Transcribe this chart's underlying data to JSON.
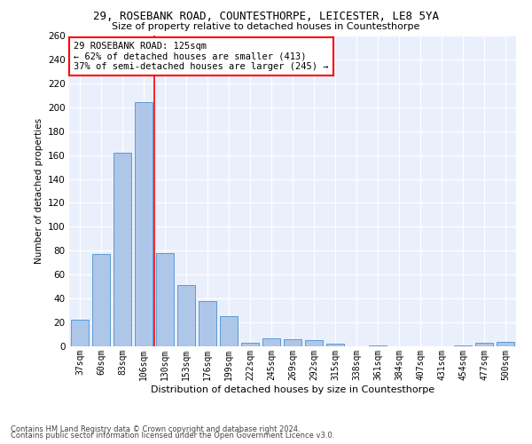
{
  "title": "29, ROSEBANK ROAD, COUNTESTHORPE, LEICESTER, LE8 5YA",
  "subtitle": "Size of property relative to detached houses in Countesthorpe",
  "xlabel": "Distribution of detached houses by size in Countesthorpe",
  "ylabel": "Number of detached properties",
  "bar_color": "#aec6e8",
  "bar_edge_color": "#5b9bd5",
  "background_color": "#eaf0fb",
  "grid_color": "#ffffff",
  "categories": [
    "37sqm",
    "60sqm",
    "83sqm",
    "106sqm",
    "130sqm",
    "153sqm",
    "176sqm",
    "199sqm",
    "222sqm",
    "245sqm",
    "269sqm",
    "292sqm",
    "315sqm",
    "338sqm",
    "361sqm",
    "384sqm",
    "407sqm",
    "431sqm",
    "454sqm",
    "477sqm",
    "500sqm"
  ],
  "values": [
    22,
    77,
    162,
    204,
    78,
    51,
    38,
    25,
    3,
    7,
    6,
    5,
    2,
    0,
    1,
    0,
    0,
    0,
    1,
    3,
    4
  ],
  "ylim": [
    0,
    260
  ],
  "yticks": [
    0,
    20,
    40,
    60,
    80,
    100,
    120,
    140,
    160,
    180,
    200,
    220,
    240,
    260
  ],
  "redline_x": 3.5,
  "annotation_title": "29 ROSEBANK ROAD: 125sqm",
  "annotation_line1": "← 62% of detached houses are smaller (413)",
  "annotation_line2": "37% of semi-detached houses are larger (245) →",
  "footer1": "Contains HM Land Registry data © Crown copyright and database right 2024.",
  "footer2": "Contains public sector information licensed under the Open Government Licence v3.0."
}
